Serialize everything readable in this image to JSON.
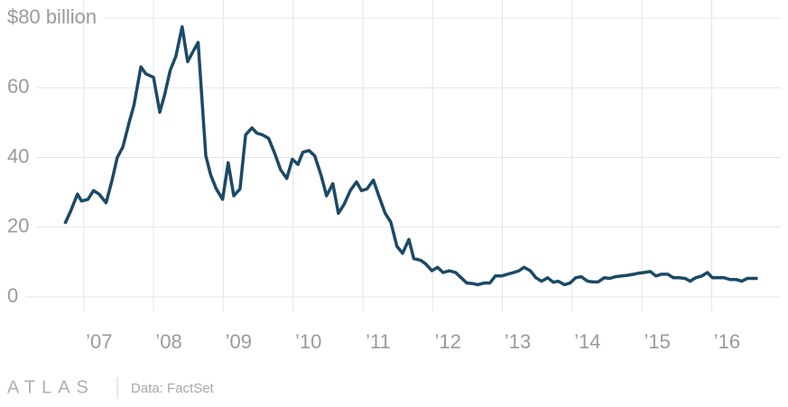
{
  "chart_data": {
    "type": "line",
    "x": [
      2006.73,
      2006.81,
      2006.91,
      2006.97,
      2007.06,
      2007.14,
      2007.22,
      2007.32,
      2007.4,
      2007.48,
      2007.56,
      2007.65,
      2007.72,
      2007.82,
      2007.89,
      2008.0,
      2008.09,
      2008.16,
      2008.24,
      2008.32,
      2008.41,
      2008.49,
      2008.57,
      2008.64,
      2008.75,
      2008.82,
      2008.9,
      2008.99,
      2009.07,
      2009.15,
      2009.24,
      2009.32,
      2009.41,
      2009.48,
      2009.56,
      2009.65,
      2009.74,
      2009.82,
      2009.91,
      2009.99,
      2010.07,
      2010.14,
      2010.23,
      2010.31,
      2010.4,
      2010.48,
      2010.57,
      2010.65,
      2010.73,
      2010.82,
      2010.91,
      2010.98,
      2011.06,
      2011.15,
      2011.23,
      2011.32,
      2011.4,
      2011.49,
      2011.57,
      2011.66,
      2011.73,
      2011.83,
      2011.9,
      2011.99,
      2012.07,
      2012.15,
      2012.24,
      2012.33,
      2012.41,
      2012.49,
      2012.58,
      2012.65,
      2012.74,
      2012.82,
      2012.9,
      2012.99,
      2013.07,
      2013.16,
      2013.24,
      2013.31,
      2013.4,
      2013.48,
      2013.56,
      2013.65,
      2013.73,
      2013.8,
      2013.89,
      2013.97,
      2014.05,
      2014.13,
      2014.22,
      2014.3,
      2014.37,
      2014.46,
      2014.54,
      2014.62,
      2014.71,
      2014.79,
      2014.88,
      2014.95,
      2015.03,
      2015.12,
      2015.2,
      2015.28,
      2015.37,
      2015.45,
      2015.53,
      2015.62,
      2015.69,
      2015.77,
      2015.86,
      2015.94,
      2016.01,
      2016.1,
      2016.18,
      2016.26,
      2016.35,
      2016.43,
      2016.51,
      2016.66
    ],
    "series": [
      {
        "color": "#1b4a66",
        "values": [
          21,
          24.5,
          29.5,
          27.5,
          28,
          30.5,
          29.5,
          27,
          33,
          40,
          43,
          50,
          55,
          66,
          64,
          63,
          53,
          58,
          65,
          69,
          77.5,
          67.5,
          70.5,
          73,
          40.5,
          35,
          31,
          28,
          38.5,
          29,
          31,
          46.5,
          48.5,
          47,
          46.5,
          45.5,
          41,
          36.5,
          34,
          39.5,
          38,
          41.5,
          42,
          40.5,
          35,
          29,
          32.5,
          24,
          26.5,
          30.5,
          33,
          30.5,
          31,
          33.5,
          29,
          24,
          21.5,
          14.5,
          12.5,
          16.5,
          11,
          10.5,
          9.5,
          7.5,
          8.5,
          7,
          7.5,
          7,
          5.5,
          4,
          3.8,
          3.5,
          4,
          4,
          6,
          6,
          6.5,
          7,
          7.5,
          8.5,
          7.5,
          5.5,
          4.5,
          5.5,
          4.2,
          4.5,
          3.5,
          4,
          5.5,
          5.8,
          4.5,
          4.3,
          4.3,
          5.5,
          5.3,
          5.8,
          6,
          6.2,
          6.5,
          6.8,
          7,
          7.3,
          6,
          6.5,
          6.5,
          5.5,
          5.5,
          5.3,
          4.5,
          5.5,
          6,
          7,
          5.5,
          5.5,
          5.5,
          5,
          5,
          4.5,
          5.3,
          5.3
        ]
      }
    ],
    "xlim": [
      2005.8,
      2016.99
    ],
    "xticks": [
      {
        "value": 2007,
        "label": "’07"
      },
      {
        "value": 2008,
        "label": "’08"
      },
      {
        "value": 2009,
        "label": "’09"
      },
      {
        "value": 2010,
        "label": "’10"
      },
      {
        "value": 2011,
        "label": "’11"
      },
      {
        "value": 2012,
        "label": "’12"
      },
      {
        "value": 2013,
        "label": "’13"
      },
      {
        "value": 2014,
        "label": "’14"
      },
      {
        "value": 2015,
        "label": "’15"
      },
      {
        "value": 2016,
        "label": "’16"
      }
    ],
    "ylim": [
      0,
      80
    ],
    "yticks": [
      0,
      20,
      40,
      60,
      {
        "value": 80,
        "label": "$80 billion"
      }
    ],
    "grid": true,
    "source": "Data: FactSet",
    "logo": "ATLAS"
  }
}
